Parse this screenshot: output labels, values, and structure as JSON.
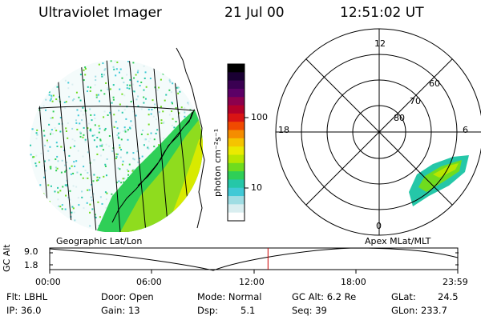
{
  "header": {
    "instrument": "Ultraviolet Imager",
    "date": "21 Jul 00",
    "time": "12:51:02 UT"
  },
  "colorbar": {
    "unit_label": "photon cm⁻²s⁻¹",
    "ticks": [
      "100",
      "10"
    ],
    "colors": [
      "#000000",
      "#1a0033",
      "#3a0052",
      "#5c0066",
      "#8c004d",
      "#b3002a",
      "#d91414",
      "#f04a00",
      "#f58d00",
      "#f5c400",
      "#eaea00",
      "#b8e600",
      "#6fdc1e",
      "#2fcf57",
      "#25c7a8",
      "#40c9d6",
      "#9fdde3",
      "#d9eef0",
      "#ffffff"
    ]
  },
  "map_labels": {
    "geographic": "Geographic Lat/Lon",
    "apex": "Apex MLat/MLT"
  },
  "polar": {
    "mlt_labels": [
      "12",
      "18",
      "6",
      "0"
    ],
    "lat_labels": [
      "60",
      "70",
      "80"
    ]
  },
  "timeline": {
    "axis_label": "GC Alt",
    "y_ticks": [
      "9.0",
      "1.8"
    ],
    "x_ticks": [
      "00:00",
      "06:00",
      "12:00",
      "18:00",
      "23:59"
    ],
    "current_time_fraction": 0.535
  },
  "info": {
    "flt": "Flt: LBHL",
    "ip": "IP: 36.0",
    "door": "Door: Open",
    "gain": "Gain: 13",
    "mode": "Mode: Normal",
    "dsp": "Dsp:",
    "dsp_val": "5.1",
    "gc_alt": "GC Alt: 6.2 Re",
    "seq": "Seq: 39",
    "glat": "GLat:",
    "glat_val": "24.5",
    "glon": "GLon: 233.7"
  }
}
